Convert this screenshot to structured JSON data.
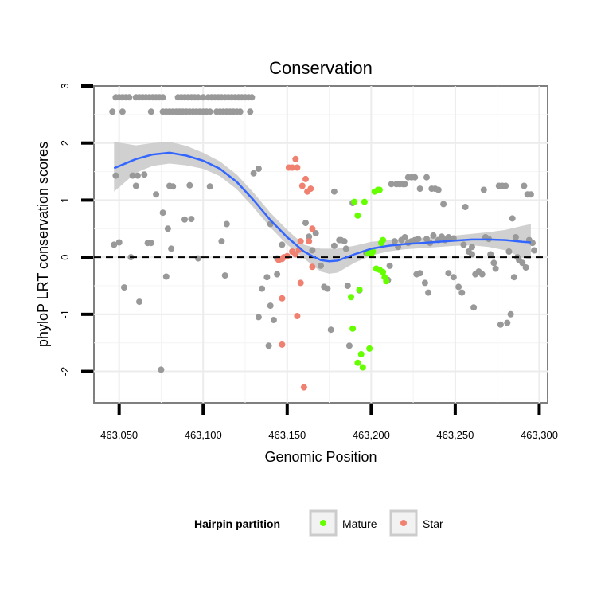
{
  "chart_data": {
    "type": "scatter",
    "title": "Conservation",
    "xlabel": "Genomic Position",
    "ylabel": "phyloP LRT conservation scores",
    "xlim": [
      463035,
      463305
    ],
    "ylim": [
      -2.55,
      3.0
    ],
    "x_ticks": [
      463050,
      463100,
      463150,
      463200,
      463250,
      463300
    ],
    "x_tick_labels": [
      "463,050",
      "463,100",
      "463,150",
      "463,200",
      "463,250",
      "463,300"
    ],
    "y_ticks": [
      -2,
      -1,
      0,
      1,
      2,
      3
    ],
    "y_tick_labels": [
      "-2",
      "-1",
      "0",
      "1",
      "2",
      "3"
    ],
    "grid": true,
    "reference_line": {
      "y": 0,
      "style": "dashed"
    },
    "colors": {
      "none": "#999999",
      "Mature": "#66ff00",
      "Star": "#f08070",
      "smooth": "#3366ff",
      "ribbon": "#c8c8c8"
    },
    "legend": {
      "title": "Hairpin partition",
      "position": "bottom",
      "entries": [
        {
          "label": "Mature",
          "group": "Mature"
        },
        {
          "label": "Star",
          "group": "Star"
        }
      ]
    },
    "smooth": {
      "x": [
        463047,
        463060,
        463070,
        463080,
        463090,
        463100,
        463110,
        463120,
        463130,
        463140,
        463150,
        463160,
        463165,
        463170,
        463175,
        463180,
        463190,
        463200,
        463210,
        463220,
        463230,
        463240,
        463250,
        463260,
        463270,
        463280,
        463290,
        463295
      ],
      "y": [
        1.56,
        1.72,
        1.8,
        1.83,
        1.78,
        1.69,
        1.55,
        1.32,
        1.0,
        0.65,
        0.35,
        0.1,
        0.02,
        -0.05,
        -0.07,
        -0.06,
        0.05,
        0.15,
        0.2,
        0.23,
        0.25,
        0.27,
        0.29,
        0.31,
        0.31,
        0.3,
        0.27,
        0.26
      ],
      "lower": [
        1.15,
        1.48,
        1.6,
        1.64,
        1.61,
        1.55,
        1.42,
        1.19,
        0.87,
        0.52,
        0.22,
        -0.02,
        -0.14,
        -0.25,
        -0.29,
        -0.27,
        -0.1,
        0.03,
        0.1,
        0.14,
        0.16,
        0.18,
        0.2,
        0.21,
        0.18,
        0.12,
        -0.01,
        -0.04
      ],
      "upper": [
        2.02,
        1.96,
        2.0,
        2.02,
        1.95,
        1.83,
        1.68,
        1.45,
        1.13,
        0.78,
        0.48,
        0.22,
        0.18,
        0.15,
        0.15,
        0.15,
        0.2,
        0.27,
        0.3,
        0.32,
        0.34,
        0.36,
        0.38,
        0.41,
        0.44,
        0.48,
        0.55,
        0.58
      ]
    },
    "series": [
      {
        "name": "Other",
        "group": "none",
        "points": [
          [
            463048,
            2.8
          ],
          [
            463050,
            2.8
          ],
          [
            463052,
            2.8
          ],
          [
            463054,
            2.8
          ],
          [
            463056,
            2.8
          ],
          [
            463060,
            2.8
          ],
          [
            463062,
            2.8
          ],
          [
            463064,
            2.8
          ],
          [
            463066,
            2.8
          ],
          [
            463068,
            2.8
          ],
          [
            463070,
            2.8
          ],
          [
            463072,
            2.8
          ],
          [
            463074,
            2.8
          ],
          [
            463076,
            2.8
          ],
          [
            463085,
            2.8
          ],
          [
            463087,
            2.8
          ],
          [
            463089,
            2.8
          ],
          [
            463091,
            2.8
          ],
          [
            463093,
            2.8
          ],
          [
            463095,
            2.8
          ],
          [
            463097,
            2.8
          ],
          [
            463100,
            2.8
          ],
          [
            463103,
            2.8
          ],
          [
            463105,
            2.8
          ],
          [
            463107,
            2.8
          ],
          [
            463109,
            2.8
          ],
          [
            463111,
            2.8
          ],
          [
            463113,
            2.8
          ],
          [
            463115,
            2.8
          ],
          [
            463117,
            2.8
          ],
          [
            463119,
            2.8
          ],
          [
            463121,
            2.8
          ],
          [
            463123,
            2.8
          ],
          [
            463125,
            2.8
          ],
          [
            463127,
            2.8
          ],
          [
            463129,
            2.8
          ],
          [
            463046,
            2.55
          ],
          [
            463052,
            2.55
          ],
          [
            463069,
            2.55
          ],
          [
            463076,
            2.55
          ],
          [
            463078,
            2.55
          ],
          [
            463080,
            2.55
          ],
          [
            463082,
            2.55
          ],
          [
            463084,
            2.55
          ],
          [
            463086,
            2.55
          ],
          [
            463088,
            2.55
          ],
          [
            463090,
            2.55
          ],
          [
            463092,
            2.55
          ],
          [
            463094,
            2.55
          ],
          [
            463096,
            2.55
          ],
          [
            463098,
            2.55
          ],
          [
            463100,
            2.55
          ],
          [
            463102,
            2.55
          ],
          [
            463104,
            2.55
          ],
          [
            463108,
            2.55
          ],
          [
            463110,
            2.55
          ],
          [
            463112,
            2.55
          ],
          [
            463114,
            2.55
          ],
          [
            463116,
            2.55
          ],
          [
            463118,
            2.55
          ],
          [
            463120,
            2.55
          ],
          [
            463122,
            2.55
          ],
          [
            463128,
            2.55
          ],
          [
            463048,
            1.43
          ],
          [
            463058,
            1.43
          ],
          [
            463061,
            1.43
          ],
          [
            463065,
            1.45
          ],
          [
            463060,
            1.25
          ],
          [
            463080,
            1.25
          ],
          [
            463082,
            1.24
          ],
          [
            463092,
            1.26
          ],
          [
            463104,
            1.24
          ],
          [
            463072,
            1.1
          ],
          [
            463076,
            0.78
          ],
          [
            463079,
            0.5
          ],
          [
            463081,
            0.15
          ],
          [
            463089,
            0.66
          ],
          [
            463093,
            0.67
          ],
          [
            463111,
            0.28
          ],
          [
            463114,
            0.58
          ],
          [
            463047,
            0.22
          ],
          [
            463050,
            0.26
          ],
          [
            463067,
            0.25
          ],
          [
            463069,
            0.25
          ],
          [
            463057,
            0.0
          ],
          [
            463097,
            -0.02
          ],
          [
            463078,
            -0.34
          ],
          [
            463113,
            -0.32
          ],
          [
            463053,
            -0.53
          ],
          [
            463062,
            -0.78
          ],
          [
            463075,
            -1.97
          ],
          [
            463130,
            1.47
          ],
          [
            463133,
            1.55
          ],
          [
            463140,
            0.58
          ],
          [
            463135,
            -0.55
          ],
          [
            463138,
            -0.35
          ],
          [
            463140,
            -0.85
          ],
          [
            463133,
            -1.05
          ],
          [
            463139,
            -1.55
          ],
          [
            463142,
            -1.1
          ],
          [
            463144,
            -0.3
          ],
          [
            463147,
            0.22
          ],
          [
            463144,
            -0.02
          ],
          [
            463161,
            0.6
          ],
          [
            463163,
            0.36
          ],
          [
            463165,
            0.12
          ],
          [
            463167,
            0.42
          ],
          [
            463170,
            -0.15
          ],
          [
            463172,
            -0.52
          ],
          [
            463174,
            -0.55
          ],
          [
            463176,
            -1.27
          ],
          [
            463178,
            1.15
          ],
          [
            463178,
            0.2
          ],
          [
            463181,
            0.3
          ],
          [
            463182,
            0.3
          ],
          [
            463184,
            0.28
          ],
          [
            463185,
            0.15
          ],
          [
            463186,
            -0.5
          ],
          [
            463187,
            -1.55
          ],
          [
            463189,
            0.95
          ],
          [
            463193,
            -0.58
          ],
          [
            463197,
            0.08
          ],
          [
            463210,
            -0.4
          ],
          [
            463211,
            -0.15
          ],
          [
            463212,
            1.28
          ],
          [
            463215,
            1.28
          ],
          [
            463217,
            1.28
          ],
          [
            463220,
            1.28
          ],
          [
            463222,
            1.4
          ],
          [
            463224,
            1.4
          ],
          [
            463226,
            1.4
          ],
          [
            463219,
            1.28
          ],
          [
            463214,
            0.28
          ],
          [
            463216,
            0.18
          ],
          [
            463218,
            0.3
          ],
          [
            463220,
            0.35
          ],
          [
            463222,
            0.25
          ],
          [
            463224,
            0.28
          ],
          [
            463226,
            0.3
          ],
          [
            463228,
            0.32
          ],
          [
            463229,
            1.2
          ],
          [
            463233,
            1.4
          ],
          [
            463227,
            -0.3
          ],
          [
            463229,
            -0.28
          ],
          [
            463232,
            -0.45
          ],
          [
            463234,
            -0.62
          ],
          [
            463236,
            1.2
          ],
          [
            463238,
            1.2
          ],
          [
            463240,
            1.18
          ],
          [
            463233,
            0.32
          ],
          [
            463235,
            0.25
          ],
          [
            463237,
            0.38
          ],
          [
            463240,
            0.3
          ],
          [
            463242,
            0.36
          ],
          [
            463244,
            0.3
          ],
          [
            463246,
            0.35
          ],
          [
            463249,
            0.33
          ],
          [
            463243,
            0.93
          ],
          [
            463246,
            -0.28
          ],
          [
            463249,
            -0.35
          ],
          [
            463252,
            -0.52
          ],
          [
            463254,
            -0.62
          ],
          [
            463256,
            0.88
          ],
          [
            463258,
            0.1
          ],
          [
            463260,
            0.18
          ],
          [
            463261,
            -0.88
          ],
          [
            463262,
            -0.3
          ],
          [
            463264,
            -0.25
          ],
          [
            463266,
            -0.3
          ],
          [
            463267,
            1.18
          ],
          [
            463268,
            0.35
          ],
          [
            463270,
            0.32
          ],
          [
            463271,
            0.05
          ],
          [
            463273,
            -0.1
          ],
          [
            463274,
            -0.2
          ],
          [
            463276,
            1.25
          ],
          [
            463278,
            1.25
          ],
          [
            463280,
            1.25
          ],
          [
            463277,
            -1.18
          ],
          [
            463281,
            -1.15
          ],
          [
            463283,
            -1.0
          ],
          [
            463284,
            0.68
          ],
          [
            463286,
            0.35
          ],
          [
            463288,
            -0.05
          ],
          [
            463290,
            -0.1
          ],
          [
            463292,
            -0.18
          ],
          [
            463291,
            1.25
          ],
          [
            463293,
            1.1
          ],
          [
            463295,
            1.1
          ],
          [
            463294,
            0.3
          ],
          [
            463296,
            0.25
          ],
          [
            463297,
            0.12
          ],
          [
            463282,
            0.1
          ],
          [
            463285,
            -0.35
          ],
          [
            463287,
            0.0
          ],
          [
            463260,
            0.05
          ],
          [
            463255,
            0.22
          ]
        ]
      },
      {
        "name": "Mature",
        "group": "Mature",
        "points": [
          [
            463190,
            0.97
          ],
          [
            463192,
            0.73
          ],
          [
            463196,
            0.97
          ],
          [
            463198,
            0.08
          ],
          [
            463200,
            0.05
          ],
          [
            463201,
            0.1
          ],
          [
            463202,
            1.15
          ],
          [
            463204,
            1.18
          ],
          [
            463205,
            1.18
          ],
          [
            463206,
            0.25
          ],
          [
            463207,
            0.3
          ],
          [
            463203,
            -0.2
          ],
          [
            463205,
            -0.22
          ],
          [
            463207,
            -0.26
          ],
          [
            463208,
            -0.35
          ],
          [
            463209,
            -0.42
          ],
          [
            463188,
            -0.7
          ],
          [
            463193,
            -0.57
          ],
          [
            463189,
            -1.25
          ],
          [
            463194,
            -1.7
          ],
          [
            463199,
            -1.6
          ],
          [
            463192,
            -1.85
          ],
          [
            463195,
            -1.93
          ]
        ]
      },
      {
        "name": "Star",
        "group": "Star",
        "points": [
          [
            463151,
            1.57
          ],
          [
            463153,
            1.57
          ],
          [
            463155,
            1.72
          ],
          [
            463156,
            1.57
          ],
          [
            463159,
            1.25
          ],
          [
            463161,
            1.37
          ],
          [
            463162,
            1.15
          ],
          [
            463164,
            1.2
          ],
          [
            463165,
            0.5
          ],
          [
            463153,
            0.1
          ],
          [
            463155,
            0.05
          ],
          [
            463148,
            0.0
          ],
          [
            463150,
            0.02
          ],
          [
            463157,
            0.13
          ],
          [
            463158,
            0.28
          ],
          [
            463163,
            0.28
          ],
          [
            463165,
            -0.17
          ],
          [
            463145,
            -0.05
          ],
          [
            463147,
            -0.03
          ],
          [
            463158,
            -0.45
          ],
          [
            463147,
            -0.72
          ],
          [
            463156,
            -1.03
          ],
          [
            463147,
            -1.53
          ],
          [
            463160,
            -2.28
          ]
        ]
      }
    ]
  }
}
